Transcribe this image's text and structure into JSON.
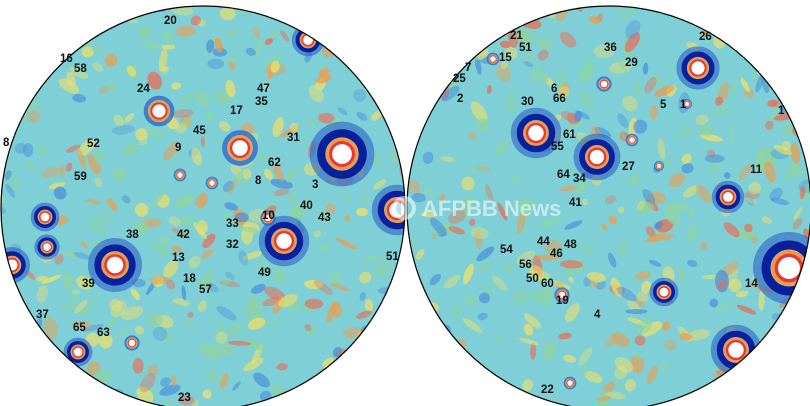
{
  "colors": {
    "background": "#7fd0d6",
    "ring_dark": "#0a1f9c",
    "ring_mid": "#2a63c8",
    "rim_red": "#e2393a",
    "rim_orange": "#f39a45",
    "center_white": "#ffffff",
    "blob_yellow": "#f2e066",
    "blob_green": "#8fd49a",
    "blob_red": "#ec6a50",
    "blob_blue": "#4a8fdc",
    "outline": "#000000"
  },
  "watermark": {
    "text": "AFPBB News",
    "icon": "afpbb-logo-icon"
  },
  "maps": [
    {
      "id": "left-hemisphere",
      "labels": [
        "20",
        "16",
        "58",
        "24",
        "47",
        "35",
        "17",
        "45",
        "31",
        "52",
        "9",
        "62",
        "59",
        "8",
        "3",
        "40",
        "43",
        "10",
        "33",
        "42",
        "38",
        "32",
        "13",
        "49",
        "18",
        "57",
        "39",
        "37",
        "65",
        "63",
        "23",
        "51",
        "8"
      ]
    },
    {
      "id": "right-hemisphere",
      "labels": [
        "21",
        "51",
        "15",
        "7",
        "25",
        "36",
        "29",
        "26",
        "2",
        "6",
        "66",
        "30",
        "5",
        "1",
        "61",
        "55",
        "27",
        "64",
        "34",
        "11",
        "41",
        "44",
        "48",
        "54",
        "46",
        "56",
        "50",
        "60",
        "14",
        "19",
        "4",
        "22",
        "1"
      ]
    }
  ]
}
